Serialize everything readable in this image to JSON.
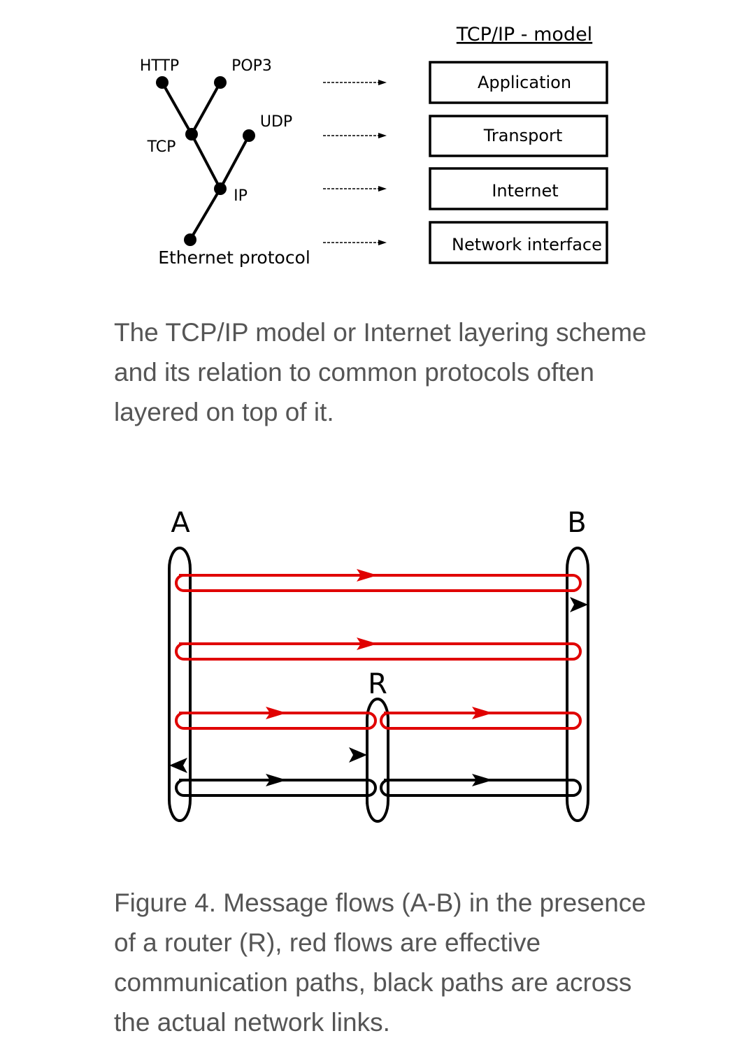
{
  "figure1": {
    "model_title": "TCP/IP - model",
    "protocols": {
      "http": "HTTP",
      "pop3": "POP3",
      "tcp": "TCP",
      "udp": "UDP",
      "ip": "IP",
      "ethernet": "Ethernet protocol"
    },
    "layers": [
      "Application",
      "Transport",
      "Internet",
      "Network interface"
    ],
    "caption": "The TCP/IP model or Internet layering scheme and its relation to common protocols often layered on top of it."
  },
  "figure2": {
    "node_a": "A",
    "node_b": "B",
    "node_r": "R",
    "colors": {
      "effective": "#e00000",
      "physical": "#000000"
    },
    "caption": "Figure 4. Message flows (A-B) in the presence of a router (R), red flows are effective communication paths, black paths are across the actual network links."
  }
}
